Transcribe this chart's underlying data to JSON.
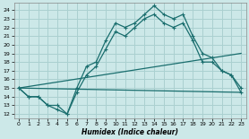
{
  "xlabel": "Humidex (Indice chaleur)",
  "background_color": "#cce8e8",
  "grid_color": "#aad0d0",
  "line_color": "#1a6e6e",
  "xlim": [
    -0.5,
    23.5
  ],
  "ylim": [
    11.5,
    24.8
  ],
  "xticks": [
    0,
    1,
    2,
    3,
    4,
    5,
    6,
    7,
    8,
    9,
    10,
    11,
    12,
    13,
    14,
    15,
    16,
    17,
    18,
    19,
    20,
    21,
    22,
    23
  ],
  "yticks": [
    12,
    13,
    14,
    15,
    16,
    17,
    18,
    19,
    20,
    21,
    22,
    23,
    24
  ],
  "curve1_x": [
    0,
    1,
    2,
    3,
    4,
    5,
    6,
    7,
    8,
    9,
    10,
    11,
    12,
    13,
    14,
    15,
    16,
    17,
    18,
    19,
    20,
    21,
    22,
    23
  ],
  "curve1_y": [
    15.0,
    14.0,
    14.0,
    13.0,
    13.0,
    12.0,
    15.0,
    17.5,
    18.0,
    20.5,
    22.5,
    22.0,
    22.5,
    23.5,
    24.5,
    23.5,
    23.0,
    23.5,
    21.0,
    19.0,
    18.5,
    17.0,
    16.5,
    15.0
  ],
  "curve2_x": [
    0,
    1,
    2,
    3,
    4,
    5,
    6,
    7,
    8,
    9,
    10,
    11,
    12,
    13,
    14,
    15,
    16,
    17,
    18,
    19,
    20,
    21,
    22,
    23
  ],
  "curve2_y": [
    15.0,
    14.0,
    14.0,
    13.0,
    12.5,
    12.0,
    14.5,
    16.5,
    17.5,
    19.5,
    21.5,
    21.0,
    22.0,
    23.0,
    23.5,
    22.5,
    22.0,
    22.5,
    20.5,
    18.0,
    18.0,
    17.0,
    16.5,
    14.5
  ],
  "line3_x": [
    0,
    23
  ],
  "line3_y": [
    15.0,
    19.0
  ],
  "line4_x": [
    0,
    23
  ],
  "line4_y": [
    15.0,
    14.5
  ]
}
